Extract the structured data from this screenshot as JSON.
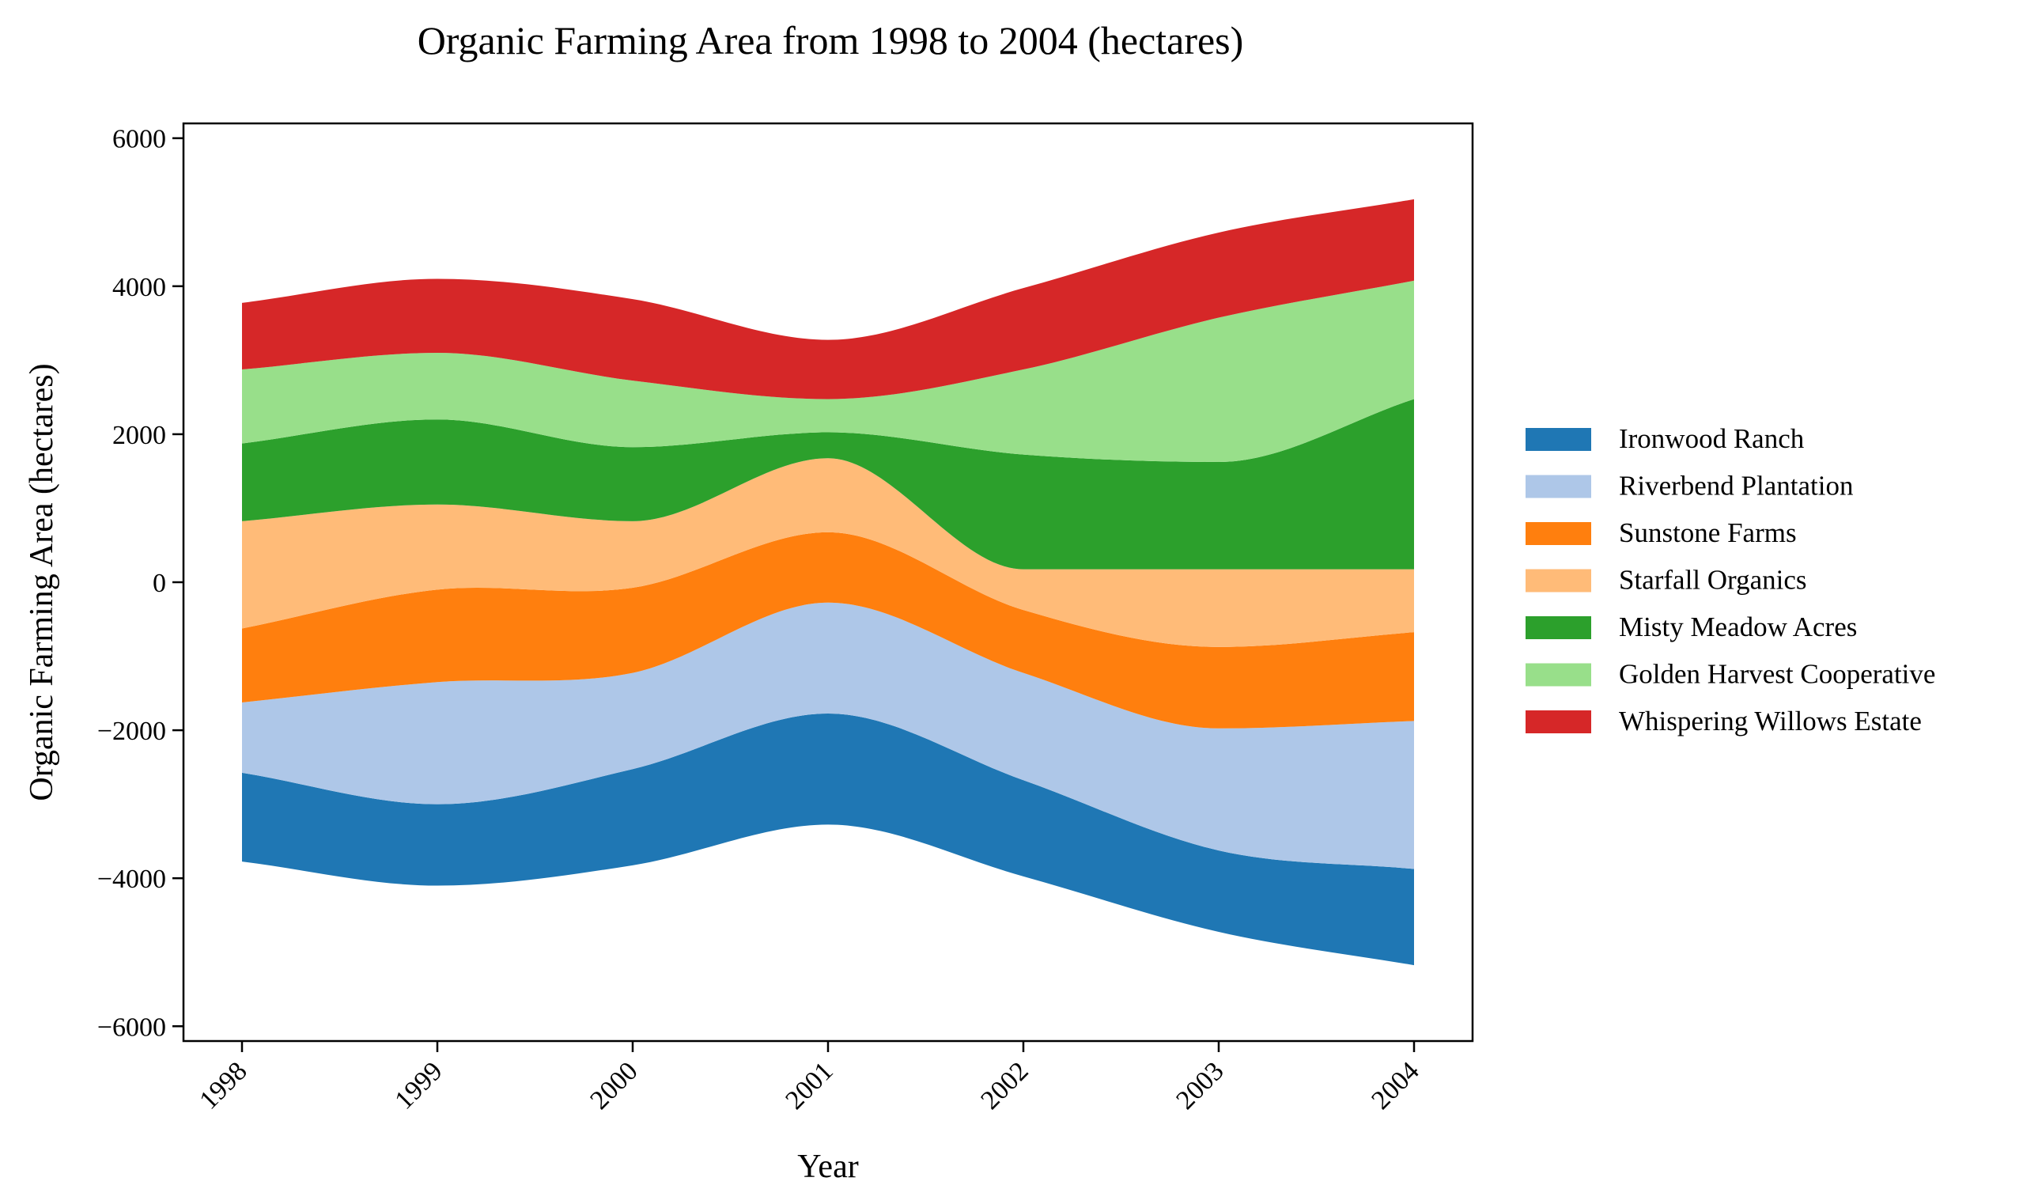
{
  "chart_data": {
    "type": "area",
    "subtype": "streamgraph",
    "title": "Organic Farming Area from 1998 to 2004 (hectares)",
    "xlabel": "Year",
    "ylabel": "Organic Farming Area (hectares)",
    "x": [
      1998,
      1999,
      2000,
      2001,
      2002,
      2003,
      2004
    ],
    "x_tick_labels": [
      "1998",
      "1999",
      "2000",
      "2001",
      "2002",
      "2003",
      "2004"
    ],
    "ylim": [
      -6200,
      6200
    ],
    "y_ticks": [
      -6000,
      -4000,
      -2000,
      0,
      2000,
      4000,
      6000
    ],
    "y_tick_labels": [
      "−6000",
      "−4000",
      "−2000",
      "0",
      "2000",
      "4000",
      "6000"
    ],
    "baseline": "symmetric",
    "grid": false,
    "legend_position": "right",
    "series": [
      {
        "name": "Ironwood Ranch",
        "color": "#1f77b4",
        "values": [
          1200,
          1100,
          1300,
          1500,
          1300,
          1100,
          1300
        ]
      },
      {
        "name": "Riverbend Plantation",
        "color": "#aec7e8",
        "values": [
          950,
          1650,
          1300,
          1500,
          1450,
          1650,
          2000
        ]
      },
      {
        "name": "Sunstone Farms",
        "color": "#ff7f0e",
        "values": [
          1000,
          1250,
          1150,
          950,
          850,
          1100,
          1200
        ]
      },
      {
        "name": "Starfall Organics",
        "color": "#ffbb78",
        "values": [
          1450,
          1150,
          900,
          1000,
          550,
          1050,
          850
        ]
      },
      {
        "name": "Misty Meadow Acres",
        "color": "#2ca02c",
        "values": [
          1050,
          1150,
          1000,
          350,
          1550,
          1450,
          2300
        ]
      },
      {
        "name": "Golden Harvest Cooperative",
        "color": "#98df8a",
        "values": [
          1000,
          900,
          900,
          450,
          1150,
          1950,
          1600
        ]
      },
      {
        "name": "Whispering Willows Estate",
        "color": "#d62728",
        "values": [
          900,
          1000,
          1100,
          800,
          1100,
          1150,
          1100
        ]
      }
    ]
  }
}
